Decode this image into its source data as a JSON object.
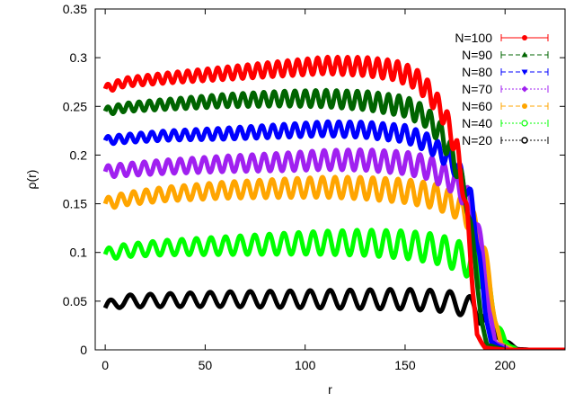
{
  "chart_data": {
    "type": "line",
    "xlabel": "r",
    "ylabel": "ρ(r)",
    "xlim": [
      -5,
      230
    ],
    "ylim": [
      0,
      0.35
    ],
    "x_ticks": [
      "0",
      "50",
      "100",
      "150",
      "200"
    ],
    "y_ticks": [
      "0",
      "0.05",
      "0.1",
      "0.15",
      "0.2",
      "0.25",
      "0.3",
      "0.35"
    ],
    "legend_position": "top-right",
    "grid": false,
    "series": [
      {
        "name": "N=100",
        "color": "#ff0000",
        "marker": "circle",
        "profile": [
          [
            0,
            0.268
          ],
          [
            10,
            0.275
          ],
          [
            30,
            0.279
          ],
          [
            60,
            0.284
          ],
          [
            90,
            0.289
          ],
          [
            110,
            0.292
          ],
          [
            130,
            0.291
          ],
          [
            145,
            0.287
          ],
          [
            155,
            0.279
          ],
          [
            162,
            0.265
          ],
          [
            170,
            0.24
          ],
          [
            176,
            0.205
          ],
          [
            181,
            0.14
          ],
          [
            184,
            0.06
          ],
          [
            186,
            0.015
          ],
          [
            190,
            0.002
          ],
          [
            200,
            0
          ],
          [
            230,
            0
          ]
        ],
        "oscillation": {
          "amplitude_start": 0.004,
          "amplitude_end": 0.012,
          "period": 5.0
        }
      },
      {
        "name": "N=90",
        "color": "#006400",
        "marker": "triangle",
        "profile": [
          [
            0,
            0.245
          ],
          [
            10,
            0.249
          ],
          [
            30,
            0.252
          ],
          [
            60,
            0.256
          ],
          [
            90,
            0.258
          ],
          [
            110,
            0.258
          ],
          [
            130,
            0.256
          ],
          [
            150,
            0.25
          ],
          [
            160,
            0.24
          ],
          [
            168,
            0.222
          ],
          [
            174,
            0.198
          ],
          [
            180,
            0.163
          ],
          [
            185,
            0.095
          ],
          [
            188,
            0.03
          ],
          [
            191,
            0.005
          ],
          [
            200,
            0
          ],
          [
            230,
            0
          ]
        ],
        "oscillation": {
          "amplitude_start": 0.004,
          "amplitude_end": 0.012,
          "period": 5.2
        }
      },
      {
        "name": "N=80",
        "color": "#0000ff",
        "marker": "triangle-down",
        "profile": [
          [
            0,
            0.215
          ],
          [
            10,
            0.217
          ],
          [
            30,
            0.22
          ],
          [
            60,
            0.222
          ],
          [
            90,
            0.225
          ],
          [
            110,
            0.227
          ],
          [
            130,
            0.226
          ],
          [
            150,
            0.222
          ],
          [
            162,
            0.212
          ],
          [
            172,
            0.196
          ],
          [
            178,
            0.18
          ],
          [
            183,
            0.155
          ],
          [
            187,
            0.1
          ],
          [
            190,
            0.04
          ],
          [
            193,
            0.008
          ],
          [
            200,
            0
          ],
          [
            230,
            0
          ]
        ],
        "oscillation": {
          "amplitude_start": 0.004,
          "amplitude_end": 0.01,
          "period": 5.5
        }
      },
      {
        "name": "N=70",
        "color": "#a020f0",
        "marker": "diamond",
        "profile": [
          [
            0,
            0.183
          ],
          [
            10,
            0.185
          ],
          [
            30,
            0.188
          ],
          [
            60,
            0.191
          ],
          [
            90,
            0.193
          ],
          [
            110,
            0.195
          ],
          [
            130,
            0.195
          ],
          [
            150,
            0.192
          ],
          [
            162,
            0.187
          ],
          [
            172,
            0.176
          ],
          [
            180,
            0.16
          ],
          [
            185,
            0.14
          ],
          [
            189,
            0.095
          ],
          [
            192,
            0.04
          ],
          [
            195,
            0.008
          ],
          [
            202,
            0
          ],
          [
            230,
            0
          ]
        ],
        "oscillation": {
          "amplitude_start": 0.006,
          "amplitude_end": 0.013,
          "period": 6.0
        }
      },
      {
        "name": "N=60",
        "color": "#ffa500",
        "marker": "pentagon",
        "profile": [
          [
            0,
            0.15
          ],
          [
            10,
            0.155
          ],
          [
            30,
            0.16
          ],
          [
            60,
            0.164
          ],
          [
            90,
            0.166
          ],
          [
            110,
            0.167
          ],
          [
            130,
            0.166
          ],
          [
            150,
            0.163
          ],
          [
            165,
            0.158
          ],
          [
            175,
            0.149
          ],
          [
            182,
            0.137
          ],
          [
            188,
            0.115
          ],
          [
            192,
            0.075
          ],
          [
            195,
            0.03
          ],
          [
            198,
            0.006
          ],
          [
            204,
            0
          ],
          [
            230,
            0
          ]
        ],
        "oscillation": {
          "amplitude_start": 0.006,
          "amplitude_end": 0.014,
          "period": 6.3
        }
      },
      {
        "name": "N=40",
        "color": "#00ff00",
        "marker": "circle-open",
        "profile": [
          [
            0,
            0.098
          ],
          [
            10,
            0.102
          ],
          [
            30,
            0.105
          ],
          [
            60,
            0.107
          ],
          [
            90,
            0.109
          ],
          [
            110,
            0.11
          ],
          [
            130,
            0.11
          ],
          [
            150,
            0.108
          ],
          [
            165,
            0.104
          ],
          [
            175,
            0.098
          ],
          [
            182,
            0.09
          ],
          [
            188,
            0.08
          ],
          [
            192,
            0.06
          ],
          [
            196,
            0.028
          ],
          [
            200,
            0.008
          ],
          [
            206,
            0
          ],
          [
            230,
            0
          ]
        ],
        "oscillation": {
          "amplitude_start": 0.006,
          "amplitude_end": 0.017,
          "period": 7.3
        }
      },
      {
        "name": "N=20",
        "color": "#000000",
        "marker": "circle-half",
        "profile": [
          [
            0,
            0.043
          ],
          [
            8,
            0.05
          ],
          [
            30,
            0.051
          ],
          [
            60,
            0.052
          ],
          [
            90,
            0.052
          ],
          [
            120,
            0.052
          ],
          [
            150,
            0.052
          ],
          [
            170,
            0.05
          ],
          [
            180,
            0.046
          ],
          [
            185,
            0.041
          ],
          [
            190,
            0.036
          ],
          [
            195,
            0.022
          ],
          [
            200,
            0.008
          ],
          [
            206,
            0.001
          ],
          [
            212,
            0
          ],
          [
            230,
            0
          ]
        ],
        "oscillation": {
          "amplitude_start": 0.006,
          "amplitude_end": 0.012,
          "period": 10.0
        }
      }
    ]
  }
}
